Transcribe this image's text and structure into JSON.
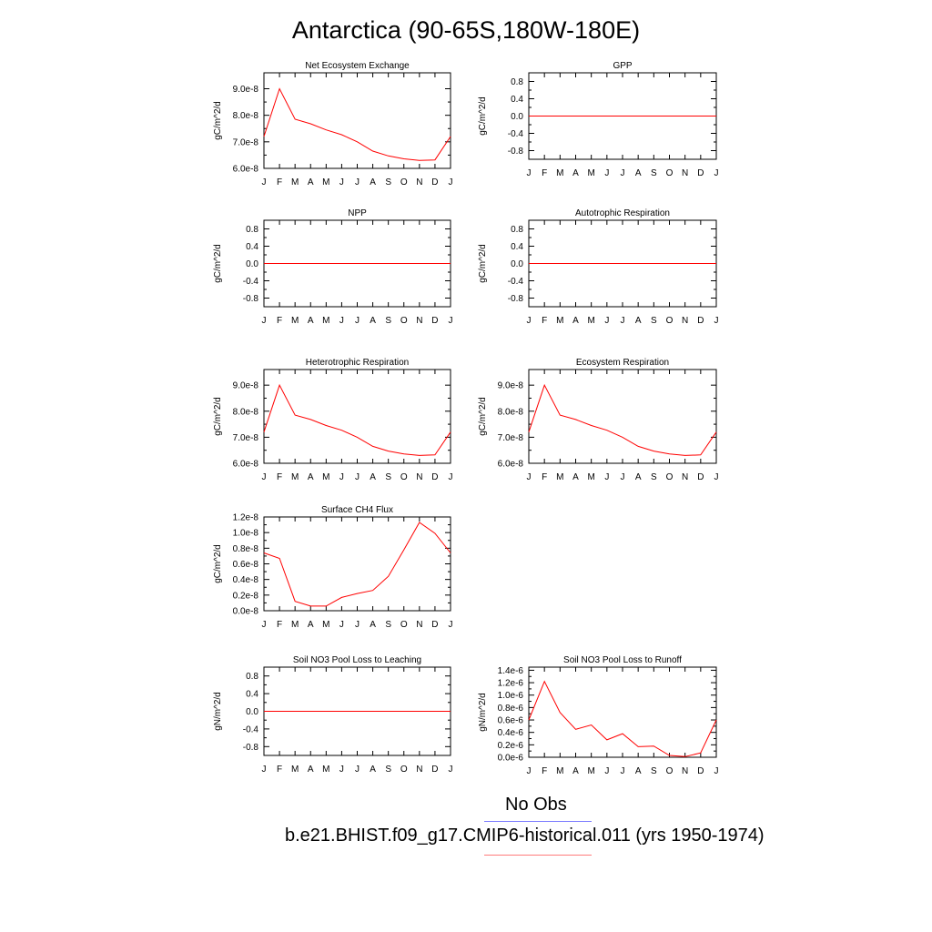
{
  "title": "Antarctica (90-65S,180W-180E)",
  "legend": {
    "obs_label": "No Obs",
    "case_label": "b.e21.BHIST.f09_g17.CMIP6-historical.011 (yrs 1950-1974)",
    "obs_color": "#7b7bff",
    "case_color": "#ff7b7b"
  },
  "line_color": "#ff0000",
  "chart_data": [
    {
      "type": "line",
      "title": "Net Ecosystem Exchange",
      "ylabel": "gC/m^2/d",
      "x": [
        "J",
        "F",
        "M",
        "A",
        "M",
        "J",
        "J",
        "A",
        "S",
        "O",
        "N",
        "D",
        "J"
      ],
      "ylim": [
        6e-08,
        9.6e-08
      ],
      "yticks": [
        6e-08,
        7e-08,
        8e-08,
        9e-08
      ],
      "ytick_labels": [
        "6.0e-8",
        "7.0e-8",
        "8.0e-8",
        "9.0e-8"
      ],
      "series": [
        {
          "values": [
            7.2e-08,
            9e-08,
            7.85e-08,
            7.68e-08,
            7.45e-08,
            7.27e-08,
            7e-08,
            6.65e-08,
            6.47e-08,
            6.36e-08,
            6.3e-08,
            6.32e-08,
            7.2e-08
          ]
        }
      ]
    },
    {
      "type": "line",
      "title": "GPP",
      "ylabel": "gC/m^2/d",
      "x": [
        "J",
        "F",
        "M",
        "A",
        "M",
        "J",
        "J",
        "A",
        "S",
        "O",
        "N",
        "D",
        "J"
      ],
      "ylim": [
        -1.0,
        1.0
      ],
      "yticks": [
        -0.8,
        -0.4,
        0.0,
        0.4,
        0.8
      ],
      "ytick_labels": [
        "-0.8",
        "-0.4",
        "0.0",
        "0.4",
        "0.8"
      ],
      "series": [
        {
          "values": [
            0,
            0,
            0,
            0,
            0,
            0,
            0,
            0,
            0,
            0,
            0,
            0,
            0
          ]
        }
      ]
    },
    {
      "type": "line",
      "title": "NPP",
      "ylabel": "gC/m^2/d",
      "x": [
        "J",
        "F",
        "M",
        "A",
        "M",
        "J",
        "J",
        "A",
        "S",
        "O",
        "N",
        "D",
        "J"
      ],
      "ylim": [
        -1.0,
        1.0
      ],
      "yticks": [
        -0.8,
        -0.4,
        0.0,
        0.4,
        0.8
      ],
      "ytick_labels": [
        "-0.8",
        "-0.4",
        "0.0",
        "0.4",
        "0.8"
      ],
      "series": [
        {
          "values": [
            0,
            0,
            0,
            0,
            0,
            0,
            0,
            0,
            0,
            0,
            0,
            0,
            0
          ]
        }
      ]
    },
    {
      "type": "line",
      "title": "Autotrophic Respiration",
      "ylabel": "gC/m^2/d",
      "x": [
        "J",
        "F",
        "M",
        "A",
        "M",
        "J",
        "J",
        "A",
        "S",
        "O",
        "N",
        "D",
        "J"
      ],
      "ylim": [
        -1.0,
        1.0
      ],
      "yticks": [
        -0.8,
        -0.4,
        0.0,
        0.4,
        0.8
      ],
      "ytick_labels": [
        "-0.8",
        "-0.4",
        "0.0",
        "0.4",
        "0.8"
      ],
      "series": [
        {
          "values": [
            0,
            0,
            0,
            0,
            0,
            0,
            0,
            0,
            0,
            0,
            0,
            0,
            0
          ]
        }
      ]
    },
    {
      "type": "line",
      "title": "Heterotrophic Respiration",
      "ylabel": "gC/m^2/d",
      "x": [
        "J",
        "F",
        "M",
        "A",
        "M",
        "J",
        "J",
        "A",
        "S",
        "O",
        "N",
        "D",
        "J"
      ],
      "ylim": [
        6e-08,
        9.6e-08
      ],
      "yticks": [
        6e-08,
        7e-08,
        8e-08,
        9e-08
      ],
      "ytick_labels": [
        "6.0e-8",
        "7.0e-8",
        "8.0e-8",
        "9.0e-8"
      ],
      "series": [
        {
          "values": [
            7.2e-08,
            9e-08,
            7.85e-08,
            7.68e-08,
            7.45e-08,
            7.27e-08,
            7e-08,
            6.65e-08,
            6.47e-08,
            6.36e-08,
            6.3e-08,
            6.32e-08,
            7.2e-08
          ]
        }
      ]
    },
    {
      "type": "line",
      "title": "Ecosystem Respiration",
      "ylabel": "gC/m^2/d",
      "x": [
        "J",
        "F",
        "M",
        "A",
        "M",
        "J",
        "J",
        "A",
        "S",
        "O",
        "N",
        "D",
        "J"
      ],
      "ylim": [
        6e-08,
        9.6e-08
      ],
      "yticks": [
        6e-08,
        7e-08,
        8e-08,
        9e-08
      ],
      "ytick_labels": [
        "6.0e-8",
        "7.0e-8",
        "8.0e-8",
        "9.0e-8"
      ],
      "series": [
        {
          "values": [
            7.2e-08,
            9e-08,
            7.85e-08,
            7.68e-08,
            7.45e-08,
            7.27e-08,
            7e-08,
            6.65e-08,
            6.47e-08,
            6.36e-08,
            6.3e-08,
            6.32e-08,
            7.2e-08
          ]
        }
      ]
    },
    {
      "type": "line",
      "title": "Surface CH4 Flux",
      "ylabel": "gC/m^2/d",
      "x": [
        "J",
        "F",
        "M",
        "A",
        "M",
        "J",
        "J",
        "A",
        "S",
        "O",
        "N",
        "D",
        "J"
      ],
      "ylim": [
        0.0,
        1.2e-08
      ],
      "yticks": [
        0.0,
        2e-09,
        4e-09,
        6e-09,
        8e-09,
        1e-08,
        1.2e-08
      ],
      "ytick_labels": [
        "0.0e-8",
        "0.2e-8",
        "0.4e-8",
        "0.6e-8",
        "0.8e-8",
        "1.0e-8",
        "1.2e-8"
      ],
      "series": [
        {
          "values": [
            7.4e-09,
            6.7e-09,
            1.2e-09,
            6e-10,
            6e-10,
            1.7e-09,
            2.2e-09,
            2.6e-09,
            4.4e-09,
            7.8e-09,
            1.13e-08,
            9.9e-09,
            7.4e-09
          ]
        }
      ]
    },
    {
      "type": "line",
      "title": "Soil NO3 Pool Loss to Leaching",
      "ylabel": "gN/m^2/d",
      "x": [
        "J",
        "F",
        "M",
        "A",
        "M",
        "J",
        "J",
        "A",
        "S",
        "O",
        "N",
        "D",
        "J"
      ],
      "ylim": [
        -1.0,
        1.0
      ],
      "yticks": [
        -0.8,
        -0.4,
        0.0,
        0.4,
        0.8
      ],
      "ytick_labels": [
        "-0.8",
        "-0.4",
        "0.0",
        "0.4",
        "0.8"
      ],
      "series": [
        {
          "values": [
            0,
            0,
            0,
            0,
            0,
            0,
            0,
            0,
            0,
            0,
            0,
            0,
            0
          ]
        }
      ]
    },
    {
      "type": "line",
      "title": "Soil NO3 Pool Loss to Runoff",
      "ylabel": "gN/m^2/d",
      "x": [
        "J",
        "F",
        "M",
        "A",
        "M",
        "J",
        "J",
        "A",
        "S",
        "O",
        "N",
        "D",
        "J"
      ],
      "ylim": [
        0.0,
        1.45e-06
      ],
      "yticks": [
        0.0,
        2e-07,
        4e-07,
        6e-07,
        8e-07,
        1e-06,
        1.2e-06,
        1.4e-06
      ],
      "ytick_labels": [
        "0.0e-6",
        "0.2e-6",
        "0.4e-6",
        "0.6e-6",
        "0.8e-6",
        "1.0e-6",
        "1.2e-6",
        "1.4e-6"
      ],
      "series": [
        {
          "values": [
            6e-07,
            1.22e-06,
            7.2e-07,
            4.5e-07,
            5.2e-07,
            2.8e-07,
            3.8e-07,
            1.7e-07,
            1.8e-07,
            3e-08,
            1e-08,
            7e-08,
            6e-07
          ]
        }
      ]
    }
  ]
}
